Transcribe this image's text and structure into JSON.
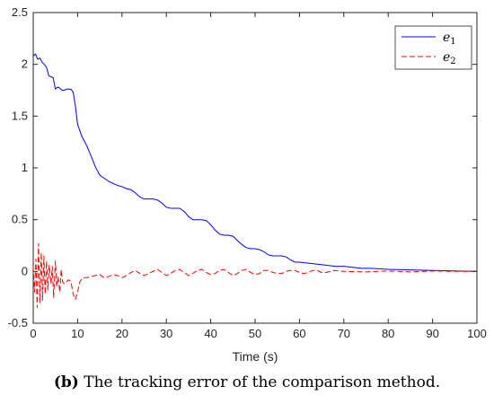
{
  "chart_data": {
    "type": "line",
    "xlabel": "Time (s)",
    "ylabel": "",
    "xlim": [
      0,
      100
    ],
    "ylim": [
      -0.5,
      2.5
    ],
    "x_ticks": [
      0,
      10,
      20,
      30,
      40,
      50,
      60,
      70,
      80,
      90,
      100
    ],
    "x_tick_labels": [
      "0",
      "10",
      "20",
      "30",
      "40",
      "50",
      "60",
      "70",
      "80",
      "90",
      "100"
    ],
    "y_ticks": [
      -0.5,
      0,
      0.5,
      1,
      1.5,
      2,
      2.5
    ],
    "y_tick_labels": [
      "-0.5",
      "0",
      "0.5",
      "1",
      "1.5",
      "2",
      "2.5"
    ],
    "grid": false,
    "legend_position": "top-right",
    "series": [
      {
        "name": "e1",
        "name_base": "e",
        "name_sub": "1",
        "color": "#0000ff",
        "style": "solid",
        "x": [
          0,
          0.5,
          1,
          1.5,
          2,
          2.5,
          3,
          3.5,
          4,
          4.5,
          5,
          5.5,
          6,
          6.5,
          7,
          7.5,
          8,
          8.5,
          9,
          9.5,
          10,
          11,
          12,
          13,
          14,
          15,
          16,
          17,
          18,
          19,
          20,
          21,
          22,
          23,
          24,
          25,
          26,
          27,
          28,
          29,
          30,
          31,
          32,
          33,
          34,
          35,
          36,
          37,
          38,
          39,
          40,
          41,
          42,
          43,
          44,
          45,
          46,
          47,
          48,
          49,
          50,
          51,
          52,
          53,
          54,
          55,
          56,
          57,
          58,
          59,
          60,
          62,
          64,
          66,
          68,
          70,
          72,
          74,
          76,
          78,
          80,
          85,
          90,
          95,
          100
        ],
        "y": [
          2.08,
          2.1,
          2.05,
          2.06,
          2.02,
          2.0,
          1.97,
          1.89,
          1.88,
          1.87,
          1.76,
          1.78,
          1.77,
          1.75,
          1.75,
          1.76,
          1.76,
          1.76,
          1.73,
          1.6,
          1.42,
          1.3,
          1.22,
          1.12,
          1.01,
          0.93,
          0.9,
          0.87,
          0.85,
          0.83,
          0.82,
          0.8,
          0.79,
          0.76,
          0.72,
          0.7,
          0.7,
          0.7,
          0.69,
          0.66,
          0.62,
          0.61,
          0.61,
          0.61,
          0.58,
          0.53,
          0.5,
          0.5,
          0.5,
          0.49,
          0.45,
          0.4,
          0.36,
          0.35,
          0.35,
          0.34,
          0.3,
          0.26,
          0.23,
          0.22,
          0.22,
          0.21,
          0.19,
          0.16,
          0.15,
          0.15,
          0.15,
          0.14,
          0.11,
          0.09,
          0.09,
          0.08,
          0.07,
          0.06,
          0.05,
          0.05,
          0.04,
          0.03,
          0.03,
          0.025,
          0.02,
          0.015,
          0.01,
          0.005,
          0.0
        ]
      },
      {
        "name": "e2",
        "name_base": "e",
        "name_sub": "2",
        "color": "#ff0000",
        "style": "dashed",
        "x": [
          0,
          0.3,
          0.6,
          0.9,
          1.2,
          1.5,
          1.8,
          2.1,
          2.4,
          2.7,
          3.0,
          3.3,
          3.6,
          4.0,
          4.3,
          4.6,
          5.0,
          5.3,
          5.6,
          6.0,
          6.3,
          6.6,
          7.0,
          7.5,
          8.0,
          8.5,
          9.0,
          9.5,
          10.0,
          10.5,
          11,
          11.5,
          12,
          13,
          14,
          15,
          16,
          17,
          18,
          19,
          20,
          21,
          22,
          23,
          24,
          25,
          26,
          27,
          28,
          29,
          30,
          31,
          32,
          33,
          34,
          35,
          36,
          37,
          38,
          39,
          40,
          41,
          42,
          43,
          44,
          45,
          46,
          47,
          48,
          49,
          50,
          51,
          52,
          53,
          54,
          55,
          56,
          57,
          58,
          59,
          60,
          61,
          62,
          63,
          64,
          65,
          66,
          67,
          68,
          70,
          75,
          80,
          85,
          90,
          95,
          100
        ],
        "y": [
          0.05,
          -0.2,
          0.12,
          -0.35,
          0.27,
          -0.3,
          0.18,
          -0.28,
          0.15,
          -0.22,
          0.1,
          -0.18,
          0.06,
          -0.12,
          0.05,
          -0.25,
          0.1,
          -0.15,
          -0.05,
          -0.2,
          0.02,
          -0.1,
          -0.12,
          -0.1,
          -0.08,
          -0.1,
          -0.22,
          -0.27,
          -0.2,
          -0.1,
          -0.07,
          -0.06,
          -0.06,
          -0.05,
          -0.04,
          -0.03,
          -0.06,
          -0.05,
          -0.03,
          -0.04,
          -0.06,
          -0.04,
          -0.01,
          0.01,
          -0.02,
          -0.04,
          -0.02,
          0.0,
          0.02,
          -0.01,
          -0.04,
          -0.02,
          0.01,
          0.02,
          -0.01,
          -0.04,
          -0.02,
          0.01,
          0.02,
          -0.01,
          -0.03,
          -0.02,
          0.01,
          0.02,
          -0.01,
          -0.04,
          -0.02,
          0.01,
          0.02,
          -0.01,
          -0.03,
          -0.02,
          0.01,
          0.01,
          -0.01,
          -0.02,
          -0.02,
          0.0,
          0.01,
          0.01,
          -0.01,
          -0.02,
          -0.01,
          0.01,
          0.01,
          -0.01,
          -0.01,
          0.0,
          0.01,
          0.0,
          -0.005,
          0.005,
          -0.005,
          0.005,
          0.0,
          0.0
        ]
      }
    ]
  },
  "caption": {
    "label": "(b)",
    "text": " The tracking error of the comparison method."
  }
}
